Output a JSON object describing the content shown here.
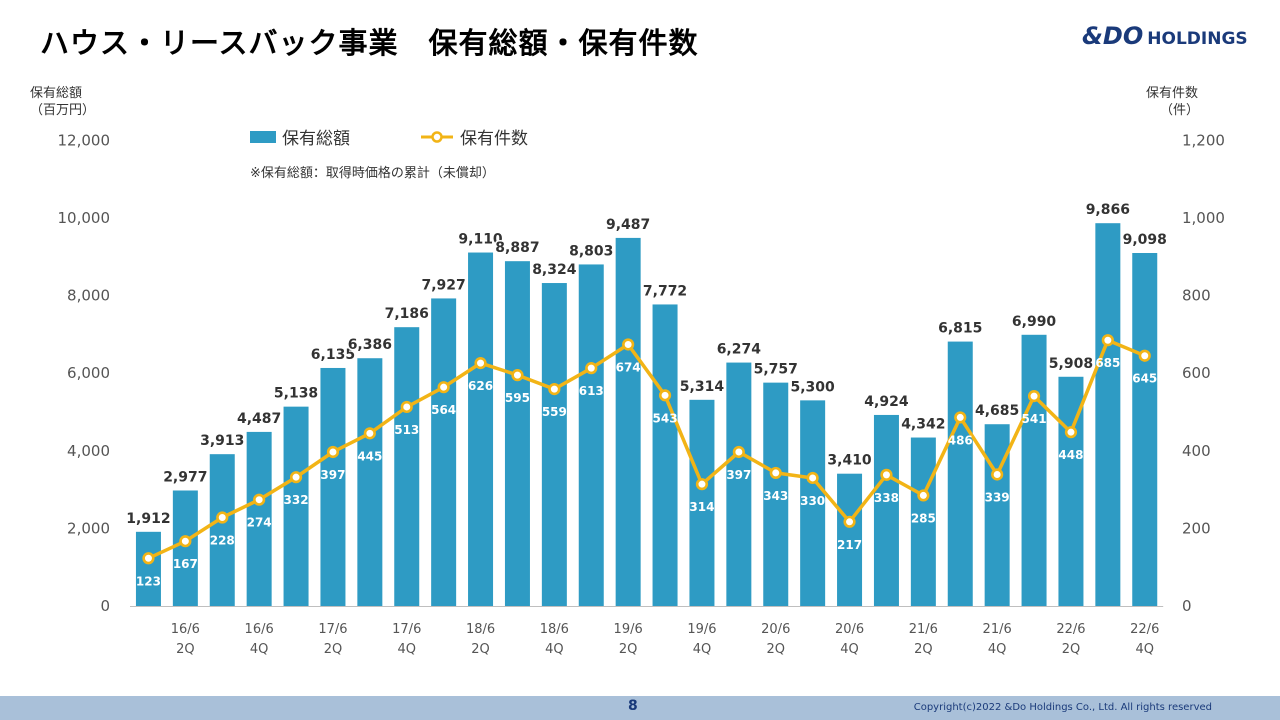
{
  "header": {
    "title": "ハウス・リースバック事業　保有総額・保有件数",
    "logo_main": "&DO",
    "logo_sub": "HOLDINGS"
  },
  "footer": {
    "page_number": "8",
    "copyright": "Copyright(c)2022 &Do Holdings Co., Ltd. All rights reserved"
  },
  "chart_data": {
    "type": "bar",
    "y_left_label": [
      "保有総額",
      "（百万円）"
    ],
    "y_right_label": [
      "保有件数",
      "（件）"
    ],
    "note": "※保有総額：取得時価格の累計（未償却）",
    "ylim_left": [
      0,
      12000
    ],
    "ylim_right": [
      0,
      1200
    ],
    "yticks_left": [
      "0",
      "2,000",
      "4,000",
      "6,000",
      "8,000",
      "10,000",
      "12,000"
    ],
    "yticks_right": [
      "0",
      "200",
      "400",
      "600",
      "800",
      "1,000",
      "1,200"
    ],
    "x_tick_labels": [
      {
        "index": 1,
        "lines": [
          "16/6",
          "2Q"
        ]
      },
      {
        "index": 3,
        "lines": [
          "16/6",
          "4Q"
        ]
      },
      {
        "index": 5,
        "lines": [
          "17/6",
          "2Q"
        ]
      },
      {
        "index": 7,
        "lines": [
          "17/6",
          "4Q"
        ]
      },
      {
        "index": 9,
        "lines": [
          "18/6",
          "2Q"
        ]
      },
      {
        "index": 11,
        "lines": [
          "18/6",
          "4Q"
        ]
      },
      {
        "index": 13,
        "lines": [
          "19/6",
          "2Q"
        ]
      },
      {
        "index": 15,
        "lines": [
          "19/6",
          "4Q"
        ]
      },
      {
        "index": 17,
        "lines": [
          "20/6",
          "2Q"
        ]
      },
      {
        "index": 19,
        "lines": [
          "20/6",
          "4Q"
        ]
      },
      {
        "index": 21,
        "lines": [
          "21/6",
          "2Q"
        ]
      },
      {
        "index": 23,
        "lines": [
          "21/6",
          "4Q"
        ]
      },
      {
        "index": 25,
        "lines": [
          "22/6",
          "2Q"
        ]
      },
      {
        "index": 27,
        "lines": [
          "22/6",
          "4Q"
        ]
      }
    ],
    "series": [
      {
        "name": "保有総額",
        "kind": "bar",
        "axis": "left",
        "color": "#2e9bc4",
        "values": [
          1912,
          2977,
          3913,
          4487,
          5138,
          6135,
          6386,
          7186,
          7927,
          9110,
          8887,
          8324,
          8803,
          9487,
          7772,
          5314,
          6274,
          5757,
          5300,
          3410,
          4924,
          4342,
          6815,
          4685,
          6990,
          5908,
          9866,
          9098
        ]
      },
      {
        "name": "保有件数",
        "kind": "line",
        "axis": "right",
        "color": "#f2b416",
        "values": [
          123,
          167,
          228,
          274,
          332,
          397,
          445,
          513,
          564,
          626,
          595,
          559,
          613,
          674,
          543,
          314,
          397,
          343,
          330,
          217,
          338,
          285,
          486,
          339,
          541,
          448,
          685,
          645
        ]
      }
    ]
  }
}
